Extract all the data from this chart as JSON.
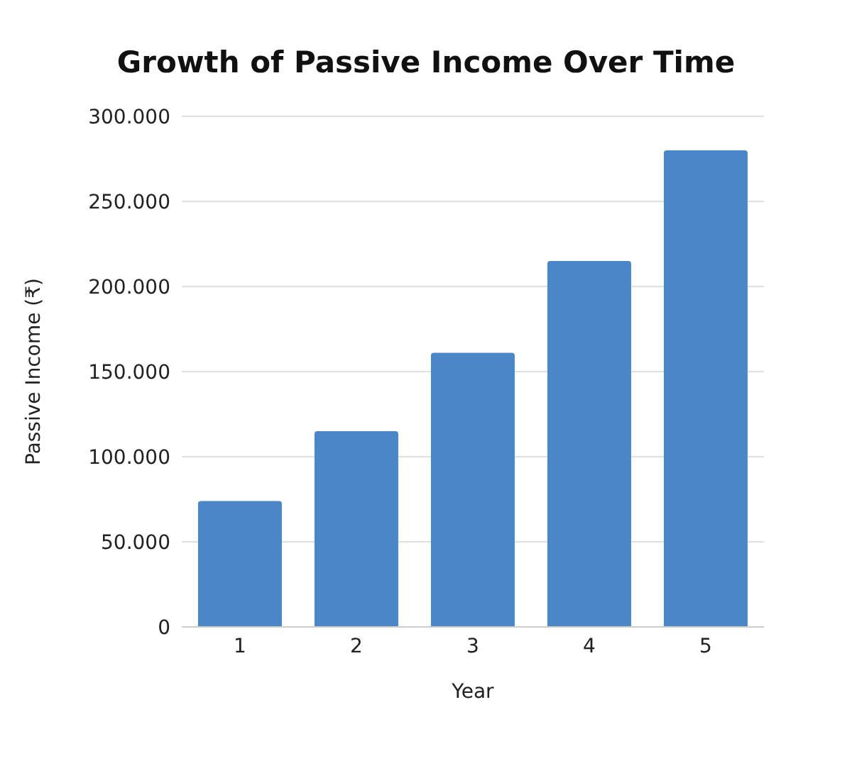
{
  "chart_data": {
    "type": "bar",
    "title": "Growth of Passive Income Over Time",
    "xlabel": "Year",
    "ylabel": "Passive Income (₹)",
    "categories": [
      "1",
      "2",
      "3",
      "4",
      "5"
    ],
    "values": [
      74000,
      115000,
      161000,
      215000,
      280000
    ],
    "color": "#4a86c8",
    "ylim": [
      0,
      300000
    ],
    "yticks": [
      0,
      {
        "value": 50000,
        "label": "50.000"
      },
      {
        "value": 100000,
        "label": "100.000"
      },
      {
        "value": 150000,
        "label": "150.000"
      },
      {
        "value": 200000,
        "label": "200.000"
      },
      {
        "value": 250000,
        "label": "250.000"
      },
      {
        "value": 300000,
        "label": "300.000"
      }
    ],
    "grid": "y"
  }
}
